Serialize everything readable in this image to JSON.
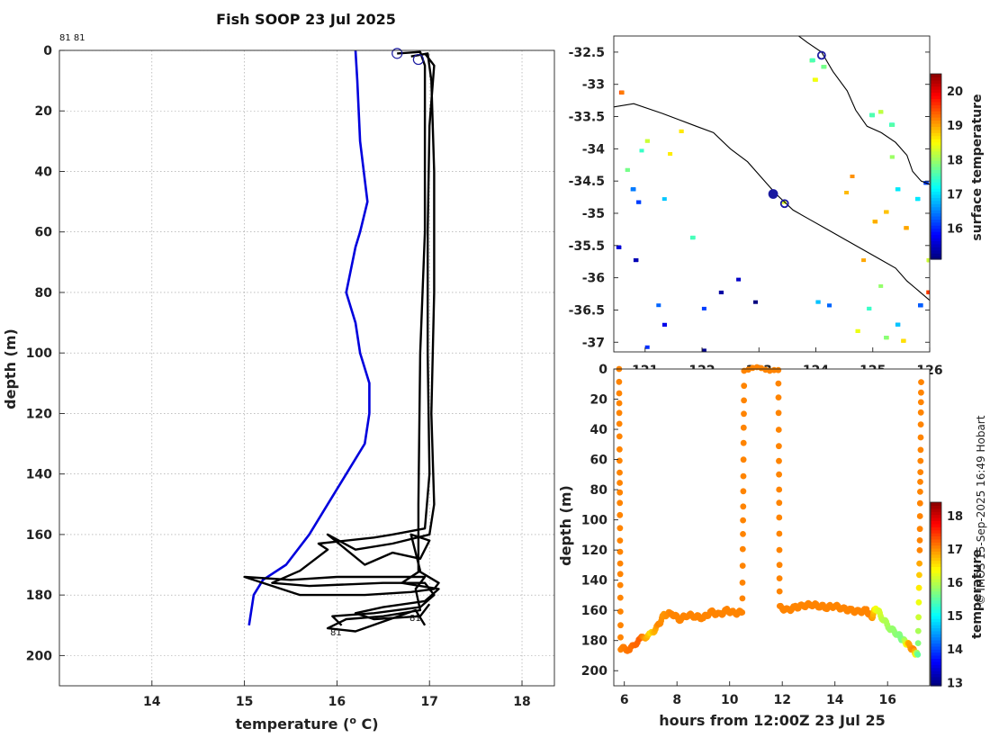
{
  "title": "Fish SOOP 23 Jul 2025",
  "credit": "© IMOS 15-Sep-2025 16:49 Hobart",
  "profile_ids": {
    "top_left": "81 81",
    "bottom_left": "81",
    "bottom_right": "81"
  },
  "colors": {
    "profile_lines": "#000000",
    "climatology_line": "#0000dd",
    "cast_marker": "#1a1aa0",
    "coast": "#000000"
  },
  "chart_data": [
    {
      "id": "profiles",
      "type": "line",
      "xlabel": "temperature (o C)",
      "xlabel_main": "temperature (",
      "xlabel_sup": "o",
      "xlabel_end": " C)",
      "ylabel": "depth (m)",
      "xlim": [
        13,
        18.35
      ],
      "ylim": [
        210,
        0
      ],
      "xticks": [
        14,
        15,
        16,
        17,
        18
      ],
      "yticks": [
        0,
        20,
        40,
        60,
        80,
        100,
        120,
        140,
        160,
        180,
        200
      ],
      "grid": true,
      "series": [
        {
          "name": "climatology",
          "color": "#0000dd",
          "points": [
            [
              16.2,
              0
            ],
            [
              16.22,
              10
            ],
            [
              16.25,
              30
            ],
            [
              16.33,
              50
            ],
            [
              16.25,
              60
            ],
            [
              16.2,
              65
            ],
            [
              16.1,
              80
            ],
            [
              16.2,
              90
            ],
            [
              16.25,
              100
            ],
            [
              16.35,
              110
            ],
            [
              16.35,
              120
            ],
            [
              16.3,
              130
            ],
            [
              16.1,
              140
            ],
            [
              15.9,
              150
            ],
            [
              15.7,
              160
            ],
            [
              15.45,
              170
            ],
            [
              15.2,
              175
            ],
            [
              15.1,
              180
            ],
            [
              15.05,
              190
            ]
          ]
        },
        {
          "name": "profile-1",
          "color": "#000000",
          "points": [
            [
              16.65,
              1
            ],
            [
              16.9,
              0.5
            ],
            [
              16.95,
              5
            ],
            [
              16.95,
              20
            ],
            [
              16.95,
              60
            ],
            [
              16.9,
              100
            ],
            [
              16.88,
              150
            ],
            [
              16.88,
              172
            ],
            [
              17.1,
              176
            ],
            [
              17.05,
              178
            ],
            [
              16.8,
              179
            ],
            [
              16.3,
              180
            ],
            [
              15.6,
              180
            ],
            [
              15.0,
              174
            ],
            [
              15.5,
              175
            ],
            [
              16.0,
              174
            ],
            [
              16.95,
              174
            ],
            [
              16.85,
              178
            ],
            [
              16.9,
              185
            ],
            [
              16.5,
              187
            ],
            [
              16.1,
              188
            ],
            [
              15.9,
              191
            ],
            [
              16.2,
              192
            ],
            [
              16.85,
              185
            ],
            [
              16.95,
              190
            ]
          ]
        },
        {
          "name": "profile-2",
          "color": "#000000",
          "points": [
            [
              16.8,
              2
            ],
            [
              16.98,
              1
            ],
            [
              17.02,
              10
            ],
            [
              17.05,
              40
            ],
            [
              17.05,
              80
            ],
            [
              17.02,
              120
            ],
            [
              17.05,
              150
            ],
            [
              17.0,
              160
            ],
            [
              16.6,
              163
            ],
            [
              16.2,
              165
            ],
            [
              15.9,
              160
            ],
            [
              16.3,
              170
            ],
            [
              16.6,
              166
            ],
            [
              16.9,
              168
            ],
            [
              17.0,
              162
            ],
            [
              16.8,
              160
            ],
            [
              16.9,
              172
            ],
            [
              16.7,
              176
            ],
            [
              17.1,
              178
            ],
            [
              16.95,
              182
            ],
            [
              16.5,
              184
            ],
            [
              16.2,
              186
            ],
            [
              16.4,
              188
            ],
            [
              16.9,
              187
            ],
            [
              17.0,
              183
            ]
          ]
        },
        {
          "name": "profile-3",
          "color": "#000000",
          "points": [
            [
              16.95,
              1
            ],
            [
              17.05,
              5
            ],
            [
              17.0,
              25
            ],
            [
              16.98,
              60
            ],
            [
              16.98,
              100
            ],
            [
              17.0,
              140
            ],
            [
              16.95,
              158
            ],
            [
              16.6,
              160
            ],
            [
              16.4,
              161
            ],
            [
              15.8,
              163
            ],
            [
              15.9,
              165
            ],
            [
              15.6,
              172
            ],
            [
              15.3,
              176
            ],
            [
              15.7,
              177
            ],
            [
              16.5,
              176
            ],
            [
              16.95,
              176
            ],
            [
              17.05,
              180
            ],
            [
              16.9,
              184
            ],
            [
              16.4,
              186
            ],
            [
              15.95,
              187
            ],
            [
              16.05,
              190
            ]
          ]
        }
      ]
    },
    {
      "id": "map",
      "type": "heatmap",
      "ylim": [
        -37.15,
        -32.25
      ],
      "xlim": [
        120.45,
        126.0
      ],
      "yticks": [
        -32.5,
        -33,
        -33.5,
        -34,
        -34.5,
        -35,
        -35.5,
        -36,
        -36.5,
        -37
      ],
      "ytick_labels": [
        "-32.5",
        "-33",
        "-33.5",
        "-34",
        "-34.5",
        "-35",
        "-35.5",
        "-36",
        "-36.5",
        "-37"
      ],
      "xticks": [
        121,
        122,
        123,
        124,
        125,
        126
      ],
      "xtick_labels": [
        "121",
        "122",
        "123",
        "124",
        "125",
        "126"
      ],
      "colorbar": {
        "label": "surface temperature",
        "range": [
          15.1,
          20.5
        ],
        "ticks": [
          16,
          17,
          18,
          19,
          20
        ],
        "colormap": "jet"
      },
      "cast_positions": [
        [
          123.25,
          -34.7
        ],
        [
          123.45,
          -34.85
        ],
        [
          124.1,
          -32.55
        ]
      ]
    },
    {
      "id": "timeseries",
      "type": "scatter",
      "xlabel": "hours from 12:00Z 23 Jul 25",
      "ylabel": "depth (m)",
      "xlim": [
        5.6,
        17.6
      ],
      "ylim": [
        210,
        0
      ],
      "xticks": [
        6,
        8,
        10,
        12,
        14,
        16
      ],
      "yticks": [
        0,
        20,
        40,
        60,
        80,
        100,
        120,
        140,
        160,
        180,
        200
      ],
      "colorbar": {
        "label": "temperature",
        "range": [
          12.9,
          18.4
        ],
        "ticks": [
          13,
          14,
          15,
          16,
          17,
          18
        ],
        "colormap": "jet"
      },
      "track": [
        [
          5.8,
          0,
          17.0
        ],
        [
          5.82,
          60,
          17.0
        ],
        [
          5.84,
          120,
          17.0
        ],
        [
          5.86,
          185,
          17.0
        ],
        [
          6.2,
          186,
          17.1
        ],
        [
          6.6,
          179,
          17.2
        ],
        [
          7.0,
          176,
          16.5
        ],
        [
          7.3,
          170,
          17.0
        ],
        [
          7.5,
          163,
          16.9
        ],
        [
          7.8,
          162,
          17.0
        ],
        [
          8.1,
          166,
          17.0
        ],
        [
          8.4,
          163,
          17.0
        ],
        [
          8.7,
          164,
          17.0
        ],
        [
          9.0,
          165,
          17.0
        ],
        [
          9.3,
          161,
          17.0
        ],
        [
          9.6,
          163,
          17.0
        ],
        [
          9.9,
          160,
          17.0
        ],
        [
          10.2,
          162,
          17.0
        ],
        [
          10.48,
          161,
          17.0
        ],
        [
          10.52,
          80,
          17.0
        ],
        [
          10.55,
          0,
          17.0
        ],
        [
          11.85,
          0,
          17.0
        ],
        [
          11.88,
          80,
          17.0
        ],
        [
          11.9,
          158,
          17.0
        ],
        [
          12.2,
          160,
          17.0
        ],
        [
          12.5,
          158,
          17.0
        ],
        [
          12.8,
          157,
          17.0
        ],
        [
          13.1,
          156,
          17.0
        ],
        [
          13.4,
          157,
          17.0
        ],
        [
          13.7,
          158,
          17.0
        ],
        [
          14.0,
          157,
          17.0
        ],
        [
          14.3,
          159,
          17.0
        ],
        [
          14.6,
          160,
          17.0
        ],
        [
          14.9,
          161,
          17.0
        ],
        [
          15.2,
          160,
          17.0
        ],
        [
          15.4,
          165,
          17.0
        ],
        [
          15.55,
          158,
          16.3
        ],
        [
          15.8,
          165,
          16.0
        ],
        [
          16.1,
          172,
          15.8
        ],
        [
          16.4,
          176,
          15.7
        ],
        [
          16.6,
          180,
          15.6
        ],
        [
          16.8,
          183,
          16.8
        ],
        [
          17.0,
          187,
          17.0
        ],
        [
          17.15,
          190,
          15.5
        ],
        [
          17.22,
          120,
          17.0
        ],
        [
          17.25,
          60,
          17.0
        ],
        [
          17.28,
          0,
          17.0
        ]
      ]
    }
  ]
}
